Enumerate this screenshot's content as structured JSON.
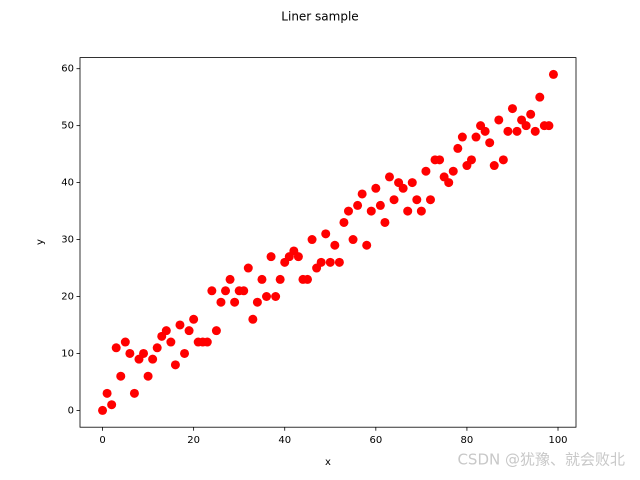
{
  "chart_data": {
    "type": "scatter",
    "title": "Liner sample",
    "x_label": "x",
    "y_label": "y",
    "watermark": "CSDN @犹豫、就会败北",
    "color": "#ff0000",
    "x": [
      0,
      1,
      2,
      3,
      4,
      5,
      6,
      7,
      8,
      9,
      10,
      11,
      12,
      13,
      14,
      15,
      16,
      17,
      18,
      19,
      20,
      21,
      22,
      23,
      24,
      25,
      26,
      27,
      28,
      29,
      30,
      31,
      32,
      33,
      34,
      35,
      36,
      37,
      38,
      39,
      40,
      41,
      42,
      43,
      44,
      45,
      46,
      47,
      48,
      49,
      50,
      51,
      52,
      53,
      54,
      55,
      56,
      57,
      58,
      59,
      60,
      61,
      62,
      63,
      64,
      65,
      66,
      67,
      68,
      69,
      70,
      71,
      72,
      73,
      74,
      75,
      76,
      77,
      78,
      79,
      80,
      81,
      82,
      83,
      84,
      85,
      86,
      87,
      88,
      89,
      90,
      91,
      92,
      93,
      94,
      95,
      96,
      97,
      98,
      99
    ],
    "y": [
      0,
      3,
      1,
      11,
      6,
      12,
      10,
      3,
      9,
      10,
      6,
      9,
      11,
      13,
      14,
      12,
      8,
      15,
      10,
      14,
      16,
      12,
      12,
      12,
      21,
      14,
      19,
      21,
      23,
      19,
      21,
      21,
      25,
      16,
      19,
      23,
      20,
      27,
      20,
      23,
      26,
      27,
      28,
      27,
      23,
      23,
      30,
      25,
      26,
      31,
      26,
      29,
      26,
      33,
      35,
      30,
      36,
      38,
      29,
      35,
      39,
      36,
      33,
      41,
      37,
      40,
      39,
      35,
      40,
      37,
      35,
      42,
      37,
      44,
      44,
      41,
      40,
      42,
      46,
      48,
      43,
      44,
      48,
      50,
      49,
      47,
      43,
      51,
      44,
      49,
      53,
      49,
      51,
      50,
      52,
      49,
      55,
      50,
      50,
      59
    ],
    "xlim": [
      -4.95,
      103.95
    ],
    "ylim": [
      -2.95,
      61.95
    ],
    "xticks": [
      0,
      20,
      40,
      60,
      80,
      100
    ],
    "yticks": [
      0,
      10,
      20,
      30,
      40,
      50,
      60
    ]
  }
}
